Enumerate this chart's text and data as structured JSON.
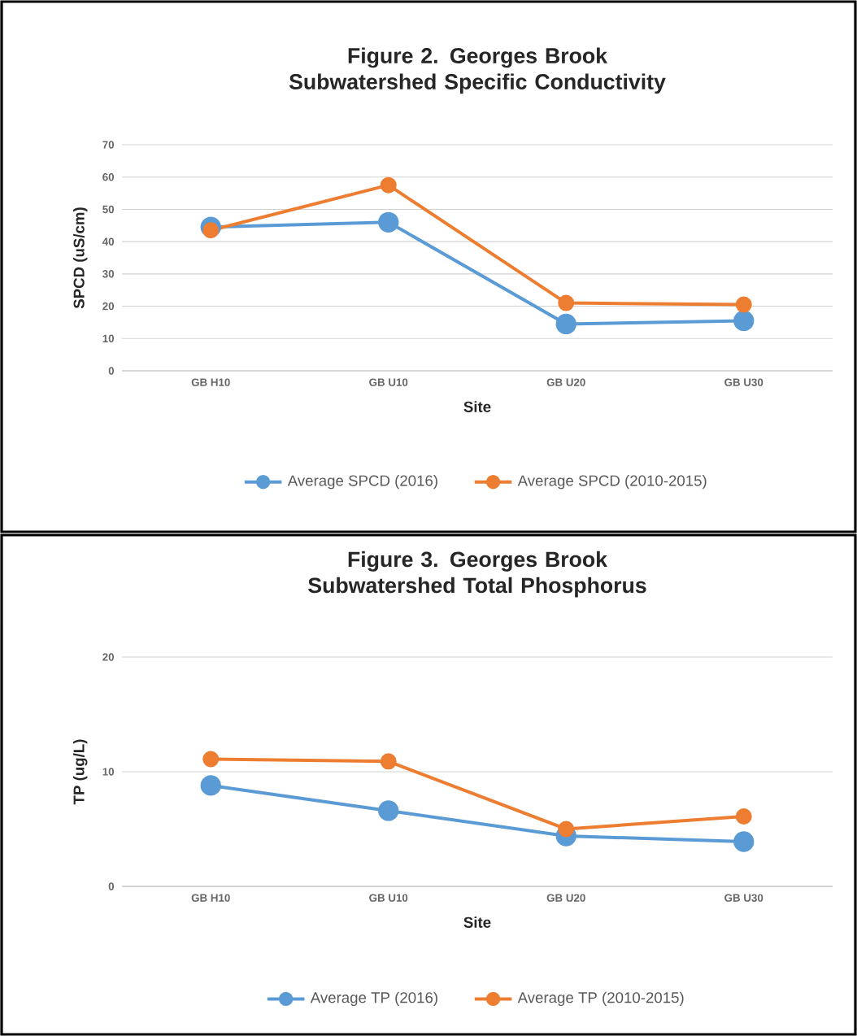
{
  "chart_data": [
    {
      "type": "line",
      "title": "Figure 2. Georges Brook Subwatershed Specific Conductivity",
      "xlabel": "Site",
      "ylabel": "SPCD (uS/cm)",
      "categories": [
        "GB H10",
        "GB U10",
        "GB U20",
        "GB U30"
      ],
      "ylim": [
        0,
        70
      ],
      "yticks": [
        0,
        10,
        20,
        30,
        40,
        50,
        60,
        70
      ],
      "grid": "y",
      "legend": "bottom",
      "marker": "circle",
      "series": [
        {
          "name": "Average SPCD (2016)",
          "color": "#5b9bd5",
          "values": [
            44.5,
            46,
            14.5,
            15.5
          ]
        },
        {
          "name": "Average SPCD (2010-2015)",
          "color": "#ed7d31",
          "values": [
            43.5,
            57.5,
            21,
            20.5
          ]
        }
      ]
    },
    {
      "type": "line",
      "title": "Figure 3. Georges Brook Subwatershed Total Phosphorus",
      "xlabel": "Site",
      "ylabel": "TP (ug/L)",
      "categories": [
        "GB H10",
        "GB U10",
        "GB U20",
        "GB U30"
      ],
      "ylim": [
        0,
        20
      ],
      "yticks": [
        0,
        10,
        20
      ],
      "grid": "y",
      "legend": "bottom",
      "marker": "circle",
      "series": [
        {
          "name": "Average TP (2016)",
          "color": "#5b9bd5",
          "values": [
            8.8,
            6.6,
            4.4,
            3.9
          ]
        },
        {
          "name": "Average TP (2010-2015)",
          "color": "#ed7d31",
          "values": [
            11.1,
            10.9,
            5.0,
            6.1
          ]
        }
      ]
    }
  ]
}
